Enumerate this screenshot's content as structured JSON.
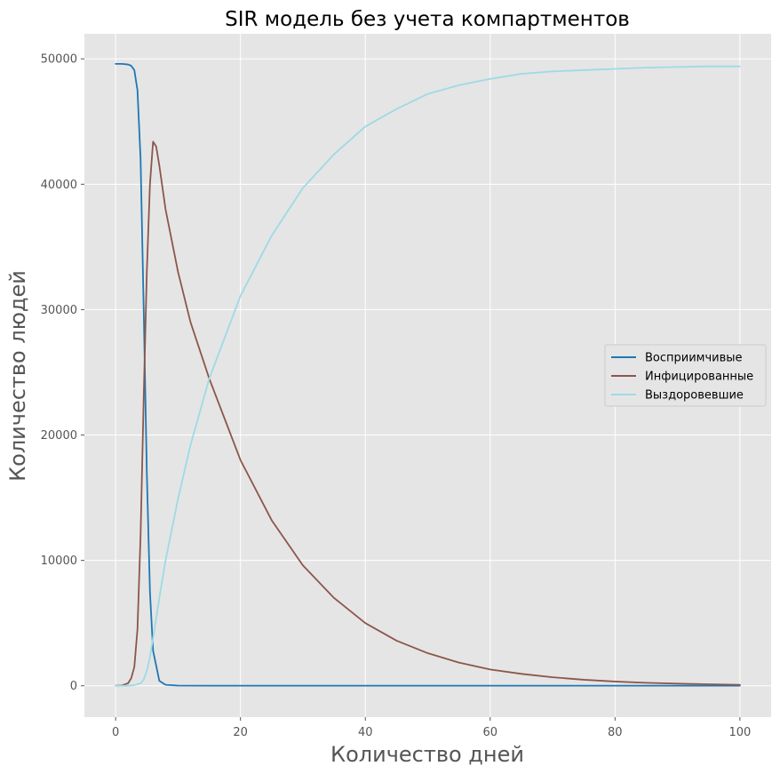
{
  "chart_data": {
    "type": "line",
    "title": "SIR модель без учета компартментов",
    "xlabel": "Количество дней",
    "ylabel": "Количество людей",
    "xlim": [
      -5,
      105
    ],
    "ylim": [
      -2500,
      52000
    ],
    "xticks": [
      0,
      20,
      40,
      60,
      80,
      100
    ],
    "yticks": [
      0,
      10000,
      20000,
      30000,
      40000,
      50000
    ],
    "grid": true,
    "legend_position": "center-right",
    "background": "#e5e5e5",
    "series": [
      {
        "name": "Восприимчивые",
        "color": "#1f77b4",
        "points": [
          [
            0,
            49600
          ],
          [
            1,
            49600
          ],
          [
            2,
            49550
          ],
          [
            2.5,
            49450
          ],
          [
            3,
            49100
          ],
          [
            3.5,
            47500
          ],
          [
            4,
            42000
          ],
          [
            4.5,
            30000
          ],
          [
            5,
            17000
          ],
          [
            5.5,
            7500
          ],
          [
            6,
            2800
          ],
          [
            7,
            400
          ],
          [
            8,
            80
          ],
          [
            10,
            15
          ],
          [
            15,
            5
          ],
          [
            30,
            5
          ],
          [
            100,
            5
          ]
        ]
      },
      {
        "name": "Инфицированные",
        "color": "#8c564b",
        "points": [
          [
            0,
            5
          ],
          [
            1,
            30
          ],
          [
            2,
            200
          ],
          [
            2.5,
            600
          ],
          [
            3,
            1500
          ],
          [
            3.5,
            4500
          ],
          [
            4,
            12000
          ],
          [
            4.5,
            23000
          ],
          [
            5,
            33000
          ],
          [
            5.5,
            40000
          ],
          [
            6,
            43400
          ],
          [
            6.5,
            43000
          ],
          [
            7,
            41500
          ],
          [
            8,
            38000
          ],
          [
            10,
            33000
          ],
          [
            12,
            29000
          ],
          [
            15,
            24500
          ],
          [
            20,
            18000
          ],
          [
            25,
            13200
          ],
          [
            30,
            9600
          ],
          [
            35,
            7000
          ],
          [
            40,
            5000
          ],
          [
            45,
            3600
          ],
          [
            50,
            2600
          ],
          [
            55,
            1850
          ],
          [
            60,
            1300
          ],
          [
            65,
            950
          ],
          [
            70,
            680
          ],
          [
            75,
            480
          ],
          [
            80,
            340
          ],
          [
            85,
            240
          ],
          [
            90,
            170
          ],
          [
            95,
            120
          ],
          [
            100,
            80
          ]
        ]
      },
      {
        "name": "Выздоровевшие",
        "color": "#9edae5",
        "points": [
          [
            0,
            0
          ],
          [
            2,
            10
          ],
          [
            3,
            50
          ],
          [
            4,
            200
          ],
          [
            4.5,
            500
          ],
          [
            5,
            1200
          ],
          [
            5.5,
            2300
          ],
          [
            6,
            3800
          ],
          [
            7,
            7000
          ],
          [
            8,
            10000
          ],
          [
            10,
            14900
          ],
          [
            12,
            19200
          ],
          [
            15,
            24500
          ],
          [
            20,
            31100
          ],
          [
            25,
            35900
          ],
          [
            30,
            39700
          ],
          [
            35,
            42400
          ],
          [
            40,
            44600
          ],
          [
            45,
            46000
          ],
          [
            50,
            47200
          ],
          [
            55,
            47900
          ],
          [
            60,
            48400
          ],
          [
            65,
            48800
          ],
          [
            70,
            49000
          ],
          [
            75,
            49100
          ],
          [
            80,
            49200
          ],
          [
            85,
            49300
          ],
          [
            90,
            49350
          ],
          [
            95,
            49400
          ],
          [
            100,
            49400
          ]
        ]
      }
    ]
  }
}
